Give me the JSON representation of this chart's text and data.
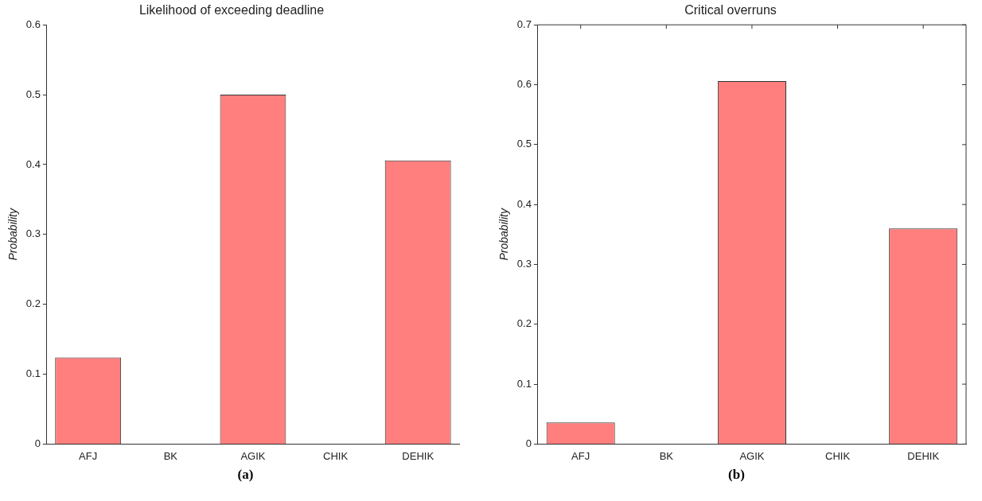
{
  "chart_data": [
    {
      "type": "bar",
      "title": "Likelihood of exceeding deadline",
      "ylabel": "Probability",
      "categories": [
        "AFJ",
        "BK",
        "AGIK",
        "CHIK",
        "DEHIK"
      ],
      "series": [
        {
          "color": "#ff7f7f",
          "values": [
            0.124,
            0,
            0.5,
            0,
            0.406
          ]
        }
      ],
      "ylim": [
        0,
        0.6
      ],
      "yticks": [
        0,
        0.1,
        0.2,
        0.3,
        0.4,
        0.5,
        0.6
      ],
      "grid": false,
      "legend": false,
      "annotations": [
        "(a)"
      ]
    },
    {
      "type": "bar",
      "title": "Critical overruns",
      "ylabel": "Probability",
      "categories": [
        "AFJ",
        "BK",
        "AGIK",
        "CHIK",
        "DEHIK"
      ],
      "series": [
        {
          "color": "#ff7f7f",
          "values": [
            0.036,
            0,
            0.606,
            0,
            0.36
          ]
        }
      ],
      "ylim": [
        0,
        0.7
      ],
      "yticks": [
        0,
        0.1,
        0.2,
        0.3,
        0.4,
        0.5,
        0.6,
        0.7
      ],
      "grid": false,
      "legend": false,
      "annotations": [
        "(b)"
      ]
    }
  ]
}
